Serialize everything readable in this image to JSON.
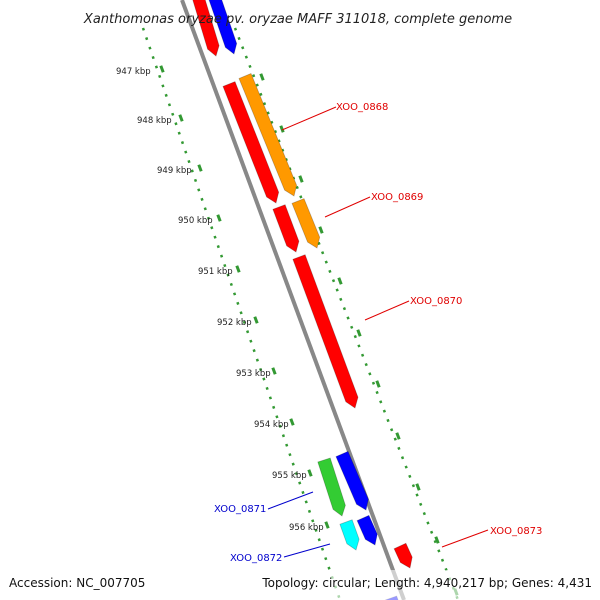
{
  "title": "Xanthomonas oryzae pv. oryzae MAFF 311018, complete genome",
  "kbp_ticks": [
    "947 kbp",
    "948 kbp",
    "949 kbp",
    "950 kbp",
    "951 kbp",
    "952 kbp",
    "953 kbp",
    "954 kbp",
    "955 kbp",
    "956 kbp"
  ],
  "gene_labels": [
    {
      "text": "XOO_0868",
      "color": "#e00000"
    },
    {
      "text": "XOO_0869",
      "color": "#e00000"
    },
    {
      "text": "XOO_0870",
      "color": "#e00000"
    },
    {
      "text": "XOO_0871",
      "color": "#0000cc"
    },
    {
      "text": "XOO_0872",
      "color": "#0000cc"
    },
    {
      "text": "XOO_0873",
      "color": "#e00000"
    }
  ],
  "colors": {
    "red": "#ff0000",
    "orange": "#ff9900",
    "blue": "#0000ff",
    "green": "#33cc33",
    "cyan": "#00ffff",
    "backbone": "#888888",
    "ruler": "#339933"
  },
  "footer": {
    "accession": "Accession: NC_007705",
    "summary": "Topology: circular; Length: 4,940,217 bp; Genes: 4,431"
  }
}
